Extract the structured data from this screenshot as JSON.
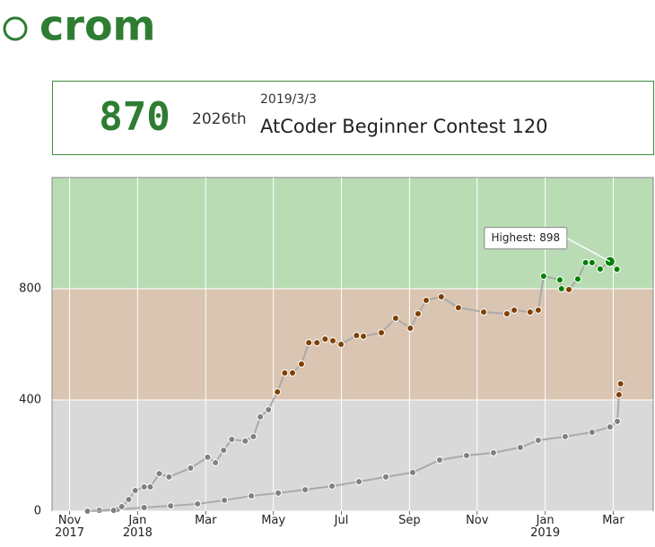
{
  "header": {
    "logo": "crom"
  },
  "status": {
    "rating": "870",
    "rank": "2026th",
    "date": "2019/3/3",
    "contest": "AtCoder Beginner Contest 120"
  },
  "chart_data": {
    "type": "line",
    "annotation": "Highest: 898",
    "xlim": [
      2017.79,
      2019.265
    ],
    "xticks": [
      {
        "value": 2017.833,
        "label": "Nov 2017"
      },
      {
        "value": 2018.0,
        "label": "Jan 2018"
      },
      {
        "value": 2018.167,
        "label": "Mar"
      },
      {
        "value": 2018.333,
        "label": "May"
      },
      {
        "value": 2018.5,
        "label": "Jul"
      },
      {
        "value": 2018.667,
        "label": "Sep"
      },
      {
        "value": 2018.833,
        "label": "Nov"
      },
      {
        "value": 2019.0,
        "label": "Jan 2019"
      },
      {
        "value": 2019.167,
        "label": "Mar"
      }
    ],
    "ylim": [
      0,
      1200
    ],
    "yticks": [
      0,
      400,
      800
    ],
    "grid": true,
    "bands": [
      {
        "from": 0,
        "to": 400,
        "color": "#d9d9d9",
        "point_color": "#808080"
      },
      {
        "from": 400,
        "to": 800,
        "color": "#d9c5b2",
        "point_color": "#804000"
      },
      {
        "from": 800,
        "to": 1200,
        "color": "#b9dcb5",
        "point_color": "#008000"
      }
    ],
    "series": [
      {
        "color": "#aaaaaa",
        "x": [
          2017.877,
          2017.941,
          2017.961,
          2017.978,
          2017.994,
          2018.016,
          2018.031,
          2018.053,
          2018.077,
          2018.13,
          2018.172,
          2018.191,
          2018.211,
          2018.231,
          2018.264,
          2018.284,
          2018.301,
          2018.321,
          2018.343,
          2018.361,
          2018.38,
          2018.402,
          2018.42,
          2018.44,
          2018.46,
          2018.479,
          2018.499,
          2018.537,
          2018.554,
          2018.598,
          2018.633,
          2018.669,
          2018.688,
          2018.708,
          2018.745,
          2018.787,
          2018.849,
          2018.906,
          2018.924,
          2018.963,
          2018.983,
          2018.996,
          2019.036,
          2019.04,
          2019.058,
          2019.08,
          2019.099,
          2019.115,
          2019.135,
          2019.159,
          2019.176
        ],
        "values": [
          0,
          3,
          16,
          42,
          74,
          87,
          87,
          135,
          123,
          155,
          194,
          174,
          219,
          258,
          252,
          268,
          339,
          365,
          429,
          497,
          497,
          529,
          606,
          606,
          619,
          613,
          600,
          632,
          629,
          642,
          694,
          658,
          710,
          758,
          771,
          732,
          716,
          710,
          723,
          716,
          723,
          845,
          832,
          800,
          797,
          835,
          894,
          894,
          871,
          898,
          870
        ]
      },
      {
        "color": "#aaaaaa",
        "x": [
          2017.877,
          2017.906,
          2017.95,
          2018.016,
          2018.081,
          2018.147,
          2018.213,
          2018.279,
          2018.345,
          2018.411,
          2018.477,
          2018.543,
          2018.609,
          2018.675,
          2018.741,
          2018.807,
          2018.873,
          2018.939,
          2018.983,
          2019.049,
          2019.115,
          2019.159,
          2019.177,
          2019.181,
          2019.185
        ],
        "values": [
          0,
          3,
          6,
          13,
          19,
          26,
          39,
          55,
          65,
          77,
          90,
          106,
          123,
          139,
          184,
          200,
          210,
          229,
          255,
          268,
          284,
          303,
          323,
          419,
          458
        ]
      }
    ]
  }
}
